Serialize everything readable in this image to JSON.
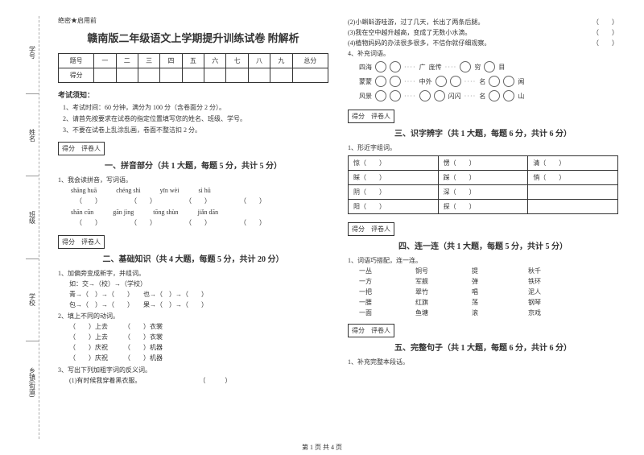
{
  "sidebar": {
    "items": [
      {
        "label": "学号",
        "sub": "号"
      },
      {
        "label": "姓名",
        "sub": "名"
      },
      {
        "label": "班级",
        "sub": "级"
      },
      {
        "label": "学校",
        "sub": ""
      },
      {
        "label": "乡镇(街道)",
        "sub": ""
      }
    ],
    "cut_marks": [
      "题",
      "答",
      "内",
      "线",
      "封"
    ]
  },
  "doc": {
    "secret": "绝密★启用前",
    "title": "赣南版二年级语文上学期提升训练试卷 附解析",
    "score_headers": [
      "题号",
      "一",
      "二",
      "三",
      "四",
      "五",
      "六",
      "七",
      "八",
      "九",
      "总分"
    ],
    "score_row_label": "得分",
    "notice_h": "考试须知：",
    "notices": [
      "1、考试时间：60 分钟，满分为 100 分（含卷面分 2 分）。",
      "2、请首先按要求在试卷的指定位置填写您的姓名、班级、学号。",
      "3、不要在试卷上乱涂乱画，卷面不整洁扣 2 分。"
    ],
    "grader_box": "得分　评卷人",
    "s1": {
      "h": "一、拼音部分（共 1 大题，每题 5 分，共计 5 分）",
      "q1": "1、我会读拼音，写词语。",
      "row1": [
        "shāng huā",
        "chéng shì",
        "yīn wèi",
        "sì hū"
      ],
      "row2": [
        "shān cūn",
        "gān jìng",
        "tōng shùn",
        "jiǎn dān"
      ]
    },
    "s2": {
      "h": "二、基础知识（共 4 大题，每题 5 分，共计 20 分）",
      "q1": "1、加偏旁变成新字，并组词。",
      "ex": "如：交→（校）→（学校）",
      "line1": "青→（　）→（　　）　　也→（　）→（　　）",
      "line2": "包→（　）→（　　）　　果→（　）→（　　）",
      "q2": "2、填上不同的动词。",
      "v1": "（　　）上去　　　（　　）衣裳",
      "v2": "（　　）上去　　　（　　）衣裳",
      "v3": "（　　）庆祝　　　（　　）机器",
      "v4": "（　　）庆祝　　　（　　）机器",
      "q3": "3、写出下列加粗字词的反义词。",
      "q3a": "(1)有时候我穿着黑衣服。　　　　　　　　　　（　　　）"
    },
    "rightTop": {
      "j2": "(2)小蝌蚪游哇游，过了几天，长出了两条后腿。",
      "j3": "(3)我在空中越升越高，变成了无数小水滴。",
      "j4": "(4)植物妈妈的办法很多很多，不信你就仔细观察。",
      "q4": "4、补充词语。",
      "fill": [
        [
          "四海",
          "",
          "",
          "",
          "广",
          "庞传",
          "",
          "",
          "穷",
          "",
          "目"
        ],
        [
          "蒙蒙",
          "",
          "",
          "",
          "中外",
          "",
          "",
          "",
          "名",
          "",
          "闻"
        ],
        [
          "风景",
          "",
          "",
          "",
          "闪闪",
          "",
          "",
          "",
          "名",
          "",
          "山"
        ]
      ]
    },
    "s3": {
      "h": "三、识字辨字（共 1 大题，每题 6 分，共计 6 分）",
      "q1": "1、形近字组词。",
      "rows": [
        [
          "惊（　　）",
          "愣（　　）",
          "清（　　）"
        ],
        [
          "睬（　　）",
          "踩（　　）",
          "悄（　　）"
        ],
        [
          "阴（　　）",
          "深（　　）",
          ""
        ],
        [
          "阳（　　）",
          "探（　　）",
          ""
        ]
      ]
    },
    "s4": {
      "h": "四、连一连（共 1 大题，每题 5 分，共计 5 分）",
      "q1": "1、词语巧搭配，连一连。",
      "rows": [
        [
          "一丛",
          "铜号",
          "提",
          "秋千"
        ],
        [
          "一方",
          "军舰",
          "弹",
          "铁环"
        ],
        [
          "一把",
          "翠竹",
          "唱",
          "泥人"
        ],
        [
          "一腰",
          "红旗",
          "荡",
          "钢琴"
        ],
        [
          "一面",
          "鱼塘",
          "滚",
          "京戏"
        ]
      ]
    },
    "s5": {
      "h": "五、完整句子（共 1 大题，每题 6 分，共计 6 分）",
      "q1": "1、补充完整本段话。"
    },
    "footer": "第 1 页 共 4 页",
    "paren": "（　　）"
  }
}
